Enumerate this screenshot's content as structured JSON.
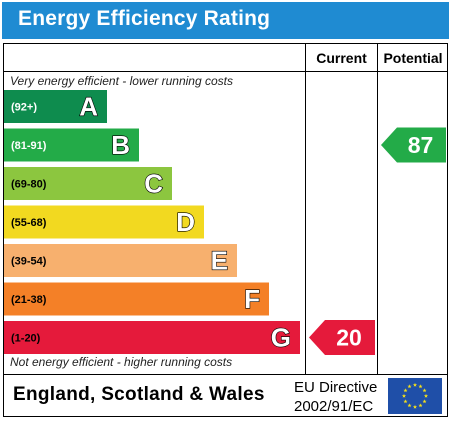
{
  "title": "Energy Efficiency Rating",
  "columns": {
    "current": "Current",
    "potential": "Potential"
  },
  "top_note": "Very energy efficient - lower running costs",
  "bottom_note": "Not energy efficient - higher running costs",
  "footer": {
    "region": "England, Scotland & Wales",
    "directive_line1": "EU Directive",
    "directive_line2": "2002/91/EC",
    "flag_icon": "eu-flag-icon"
  },
  "chart_data": {
    "type": "bar",
    "categories": [
      "A",
      "B",
      "C",
      "D",
      "E",
      "F",
      "G"
    ],
    "ranges": [
      "(92+)",
      "(81-91)",
      "(69-80)",
      "(55-68)",
      "(39-54)",
      "(21-38)",
      "(1-20)"
    ],
    "colors": [
      "#0e8c4e",
      "#23ab48",
      "#8cc63f",
      "#f2d920",
      "#f7b06e",
      "#f48027",
      "#e51a3b"
    ],
    "range_text_colors": [
      "#ffffff",
      "#ffffff",
      "#000000",
      "#000000",
      "#000000",
      "#000000",
      "#000000"
    ],
    "current": {
      "value": 20,
      "band": "G",
      "color": "#e51a3b"
    },
    "potential": {
      "value": 87,
      "band": "B",
      "color": "#23ab48"
    }
  }
}
